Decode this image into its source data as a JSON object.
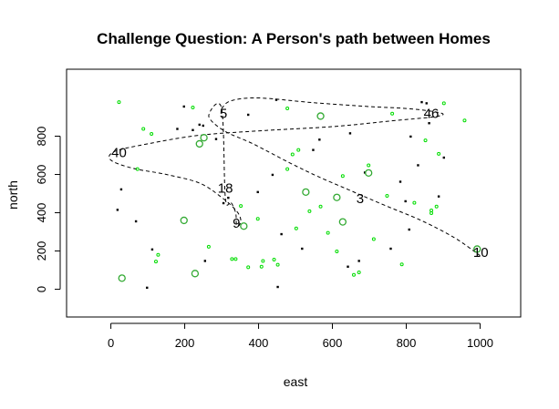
{
  "chart_data": {
    "type": "scatter",
    "title": "Challenge Question: A Person's path between Homes",
    "xlabel": "east",
    "ylabel": "north",
    "xlim": [
      -120,
      1110
    ],
    "ylim": [
      -145,
      1150
    ],
    "xticks": [
      0,
      200,
      400,
      600,
      800,
      1000
    ],
    "yticks": [
      0,
      200,
      400,
      600,
      800
    ],
    "grid": false,
    "colors": {
      "black_points": "#000000",
      "green_points": "#00dd00",
      "path": "#000000"
    },
    "black_points": [
      [
        18,
        415
      ],
      [
        28,
        522
      ],
      [
        68,
        355
      ],
      [
        98,
        8
      ],
      [
        112,
        208
      ],
      [
        180,
        838
      ],
      [
        198,
        955
      ],
      [
        222,
        832
      ],
      [
        240,
        860
      ],
      [
        250,
        855
      ],
      [
        255,
        148
      ],
      [
        285,
        785
      ],
      [
        305,
        450
      ],
      [
        318,
        478
      ],
      [
        372,
        912
      ],
      [
        398,
        508
      ],
      [
        438,
        598
      ],
      [
        448,
        990
      ],
      [
        452,
        12
      ],
      [
        462,
        288
      ],
      [
        518,
        212
      ],
      [
        548,
        728
      ],
      [
        565,
        782
      ],
      [
        642,
        118
      ],
      [
        648,
        815
      ],
      [
        672,
        148
      ],
      [
        688,
        610
      ],
      [
        758,
        212
      ],
      [
        784,
        562
      ],
      [
        798,
        460
      ],
      [
        808,
        312
      ],
      [
        812,
        798
      ],
      [
        832,
        648
      ],
      [
        842,
        978
      ],
      [
        855,
        972
      ],
      [
        862,
        868
      ],
      [
        888,
        485
      ],
      [
        902,
        688
      ]
    ],
    "green_points": [
      [
        22,
        978
      ],
      [
        72,
        628
      ],
      [
        88,
        838
      ],
      [
        110,
        812
      ],
      [
        122,
        145
      ],
      [
        128,
        180
      ],
      [
        222,
        950
      ],
      [
        265,
        222
      ],
      [
        328,
        158
      ],
      [
        338,
        158
      ],
      [
        352,
        435
      ],
      [
        372,
        115
      ],
      [
        398,
        368
      ],
      [
        408,
        118
      ],
      [
        412,
        148
      ],
      [
        442,
        155
      ],
      [
        452,
        128
      ],
      [
        478,
        945
      ],
      [
        478,
        628
      ],
      [
        492,
        705
      ],
      [
        502,
        318
      ],
      [
        508,
        728
      ],
      [
        538,
        408
      ],
      [
        568,
        432
      ],
      [
        588,
        295
      ],
      [
        612,
        198
      ],
      [
        628,
        592
      ],
      [
        658,
        75
      ],
      [
        672,
        88
      ],
      [
        698,
        648
      ],
      [
        712,
        262
      ],
      [
        748,
        488
      ],
      [
        762,
        918
      ],
      [
        788,
        130
      ],
      [
        822,
        452
      ],
      [
        852,
        778
      ],
      [
        868,
        398
      ],
      [
        868,
        412
      ],
      [
        882,
        432
      ],
      [
        888,
        708
      ],
      [
        902,
        972
      ],
      [
        958,
        882
      ]
    ],
    "homes": [
      {
        "label": "5",
        "x": 305,
        "y": 920
      },
      {
        "label": "46",
        "x": 868,
        "y": 920
      },
      {
        "label": "40",
        "x": 22,
        "y": 715
      },
      {
        "label": "18",
        "x": 310,
        "y": 528
      },
      {
        "label": "3",
        "x": 675,
        "y": 475
      },
      {
        "label": "9",
        "x": 340,
        "y": 345
      },
      {
        "label": "10",
        "x": 1002,
        "y": 192
      }
    ],
    "home_markers": [
      [
        30,
        58
      ],
      [
        198,
        360
      ],
      [
        228,
        82
      ],
      [
        240,
        760
      ],
      [
        252,
        792
      ],
      [
        360,
        330
      ],
      [
        528,
        508
      ],
      [
        568,
        905
      ],
      [
        612,
        480
      ],
      [
        628,
        352
      ],
      [
        698,
        608
      ],
      [
        992,
        210
      ]
    ],
    "path": [
      [
        300,
        945
      ],
      [
        325,
        985
      ],
      [
        400,
        1000
      ],
      [
        550,
        975
      ],
      [
        700,
        955
      ],
      [
        800,
        945
      ],
      [
        870,
        930
      ],
      [
        900,
        915
      ],
      [
        870,
        900
      ],
      [
        760,
        880
      ],
      [
        600,
        850
      ],
      [
        420,
        830
      ],
      [
        240,
        805
      ],
      [
        100,
        760
      ],
      [
        10,
        720
      ],
      [
        0,
        675
      ],
      [
        60,
        632
      ],
      [
        150,
        600
      ],
      [
        240,
        555
      ],
      [
        300,
        480
      ],
      [
        340,
        410
      ],
      [
        352,
        360
      ],
      [
        345,
        330
      ],
      [
        340,
        345
      ],
      [
        338,
        400
      ],
      [
        325,
        455
      ],
      [
        310,
        480
      ],
      [
        300,
        945
      ],
      [
        265,
        905
      ],
      [
        305,
        830
      ],
      [
        385,
        760
      ],
      [
        480,
        665
      ],
      [
        560,
        590
      ],
      [
        650,
        515
      ],
      [
        740,
        440
      ],
      [
        840,
        360
      ],
      [
        930,
        270
      ],
      [
        990,
        190
      ],
      [
        1000,
        175
      ]
    ]
  }
}
